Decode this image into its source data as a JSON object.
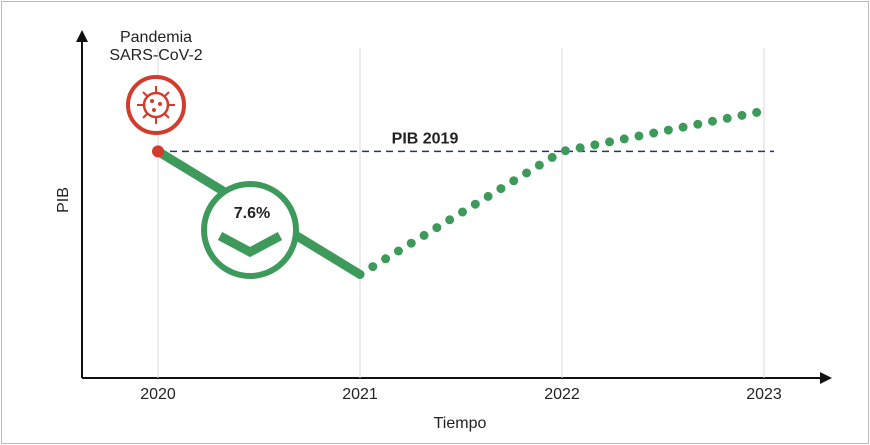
{
  "chart_data": {
    "type": "line",
    "x_label": "Tiempo",
    "y_label": "PIB",
    "categories": [
      "2020",
      "2021",
      "2022",
      "2023"
    ],
    "values": [
      100,
      92.4,
      100,
      102.5
    ],
    "segment_styles": [
      "solid",
      "dotted",
      "dotted"
    ],
    "color": "#3d9a5a",
    "ylim": [
      86,
      107.5
    ],
    "reference_line": {
      "label": "PIB 2019",
      "value": 100,
      "color": "#2e3366"
    },
    "annotations": {
      "event": [
        "Pandemia",
        "SARS-CoV-2"
      ],
      "drop": "7.6%"
    },
    "grid": true
  }
}
